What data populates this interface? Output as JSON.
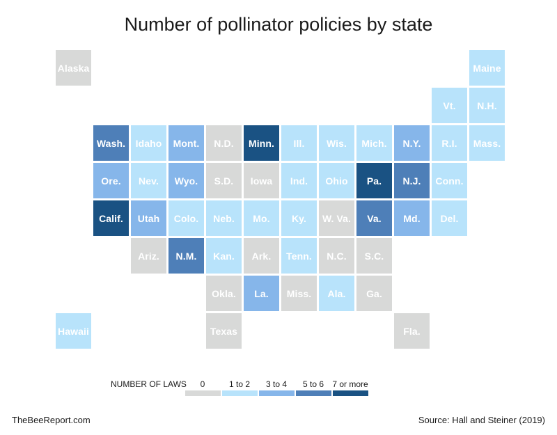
{
  "title": "Number of pollinator policies by state",
  "legend": {
    "title": "NUMBER OF LAWS",
    "categories": [
      {
        "label": "0",
        "color": "#d8d9d8"
      },
      {
        "label": "1 to 2",
        "color": "#b8e3fb"
      },
      {
        "label": "3 to 4",
        "color": "#86b6ea"
      },
      {
        "label": "5 to 6",
        "color": "#4e7fb8"
      },
      {
        "label": "7 or more",
        "color": "#1a5283"
      }
    ]
  },
  "source": "Source: Hall and Steiner (2019)",
  "credit": "TheBeeReport.com",
  "states": [
    {
      "name": "Alaska",
      "row": 0,
      "col": 0,
      "cat": 0
    },
    {
      "name": "Maine",
      "row": 0,
      "col": 11,
      "cat": 1
    },
    {
      "name": "Vt.",
      "row": 1,
      "col": 10,
      "cat": 1
    },
    {
      "name": "N.H.",
      "row": 1,
      "col": 11,
      "cat": 1
    },
    {
      "name": "Wash.",
      "row": 2,
      "col": 1,
      "cat": 3
    },
    {
      "name": "Idaho",
      "row": 2,
      "col": 2,
      "cat": 1
    },
    {
      "name": "Mont.",
      "row": 2,
      "col": 3,
      "cat": 2
    },
    {
      "name": "N.D.",
      "row": 2,
      "col": 4,
      "cat": 0
    },
    {
      "name": "Minn.",
      "row": 2,
      "col": 5,
      "cat": 4
    },
    {
      "name": "Ill.",
      "row": 2,
      "col": 6,
      "cat": 1
    },
    {
      "name": "Wis.",
      "row": 2,
      "col": 7,
      "cat": 1
    },
    {
      "name": "Mich.",
      "row": 2,
      "col": 8,
      "cat": 1
    },
    {
      "name": "N.Y.",
      "row": 2,
      "col": 9,
      "cat": 2
    },
    {
      "name": "R.I.",
      "row": 2,
      "col": 10,
      "cat": 1
    },
    {
      "name": "Mass.",
      "row": 2,
      "col": 11,
      "cat": 1
    },
    {
      "name": "Ore.",
      "row": 3,
      "col": 1,
      "cat": 2
    },
    {
      "name": "Nev.",
      "row": 3,
      "col": 2,
      "cat": 1
    },
    {
      "name": "Wyo.",
      "row": 3,
      "col": 3,
      "cat": 2
    },
    {
      "name": "S.D.",
      "row": 3,
      "col": 4,
      "cat": 0
    },
    {
      "name": "Iowa",
      "row": 3,
      "col": 5,
      "cat": 0
    },
    {
      "name": "Ind.",
      "row": 3,
      "col": 6,
      "cat": 1
    },
    {
      "name": "Ohio",
      "row": 3,
      "col": 7,
      "cat": 1
    },
    {
      "name": "Pa.",
      "row": 3,
      "col": 8,
      "cat": 4
    },
    {
      "name": "N.J.",
      "row": 3,
      "col": 9,
      "cat": 3
    },
    {
      "name": "Conn.",
      "row": 3,
      "col": 10,
      "cat": 1
    },
    {
      "name": "Calif.",
      "row": 4,
      "col": 1,
      "cat": 4
    },
    {
      "name": "Utah",
      "row": 4,
      "col": 2,
      "cat": 2
    },
    {
      "name": "Colo.",
      "row": 4,
      "col": 3,
      "cat": 1
    },
    {
      "name": "Neb.",
      "row": 4,
      "col": 4,
      "cat": 1
    },
    {
      "name": "Mo.",
      "row": 4,
      "col": 5,
      "cat": 1
    },
    {
      "name": "Ky.",
      "row": 4,
      "col": 6,
      "cat": 1
    },
    {
      "name": "W. Va.",
      "row": 4,
      "col": 7,
      "cat": 0
    },
    {
      "name": "Va.",
      "row": 4,
      "col": 8,
      "cat": 3
    },
    {
      "name": "Md.",
      "row": 4,
      "col": 9,
      "cat": 2
    },
    {
      "name": "Del.",
      "row": 4,
      "col": 10,
      "cat": 1
    },
    {
      "name": "Ariz.",
      "row": 5,
      "col": 2,
      "cat": 0
    },
    {
      "name": "N.M.",
      "row": 5,
      "col": 3,
      "cat": 3
    },
    {
      "name": "Kan.",
      "row": 5,
      "col": 4,
      "cat": 1
    },
    {
      "name": "Ark.",
      "row": 5,
      "col": 5,
      "cat": 0
    },
    {
      "name": "Tenn.",
      "row": 5,
      "col": 6,
      "cat": 1
    },
    {
      "name": "N.C.",
      "row": 5,
      "col": 7,
      "cat": 0
    },
    {
      "name": "S.C.",
      "row": 5,
      "col": 8,
      "cat": 0
    },
    {
      "name": "Okla.",
      "row": 6,
      "col": 4,
      "cat": 0
    },
    {
      "name": "La.",
      "row": 6,
      "col": 5,
      "cat": 2
    },
    {
      "name": "Miss.",
      "row": 6,
      "col": 6,
      "cat": 0
    },
    {
      "name": "Ala.",
      "row": 6,
      "col": 7,
      "cat": 1
    },
    {
      "name": "Ga.",
      "row": 6,
      "col": 8,
      "cat": 0
    },
    {
      "name": "Hawaii",
      "row": 7,
      "col": 0,
      "cat": 1
    },
    {
      "name": "Texas",
      "row": 7,
      "col": 4,
      "cat": 0
    },
    {
      "name": "Fla.",
      "row": 7,
      "col": 9,
      "cat": 0
    }
  ]
}
